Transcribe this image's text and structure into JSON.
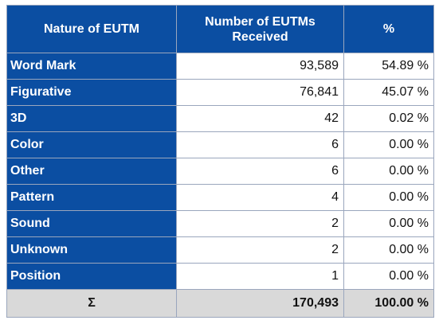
{
  "table": {
    "headers": {
      "nature": "Nature of EUTM",
      "count": "Number of EUTMs Received",
      "percent": "%"
    },
    "rows": [
      {
        "nature": "Word Mark",
        "count": "93,589",
        "percent": "54.89 %"
      },
      {
        "nature": "Figurative",
        "count": "76,841",
        "percent": "45.07 %"
      },
      {
        "nature": "3D",
        "count": "42",
        "percent": "0.02 %"
      },
      {
        "nature": "Color",
        "count": "6",
        "percent": "0.00 %"
      },
      {
        "nature": "Other",
        "count": "6",
        "percent": "0.00 %"
      },
      {
        "nature": "Pattern",
        "count": "4",
        "percent": "0.00 %"
      },
      {
        "nature": "Sound",
        "count": "2",
        "percent": "0.00 %"
      },
      {
        "nature": "Unknown",
        "count": "2",
        "percent": "0.00 %"
      },
      {
        "nature": "Position",
        "count": "1",
        "percent": "0.00 %"
      }
    ],
    "total": {
      "label": "Σ",
      "count": "170,493",
      "percent": "100.00 %"
    }
  },
  "colors": {
    "header_blue": "#0b4ea2",
    "total_gray": "#d9d9d9"
  }
}
